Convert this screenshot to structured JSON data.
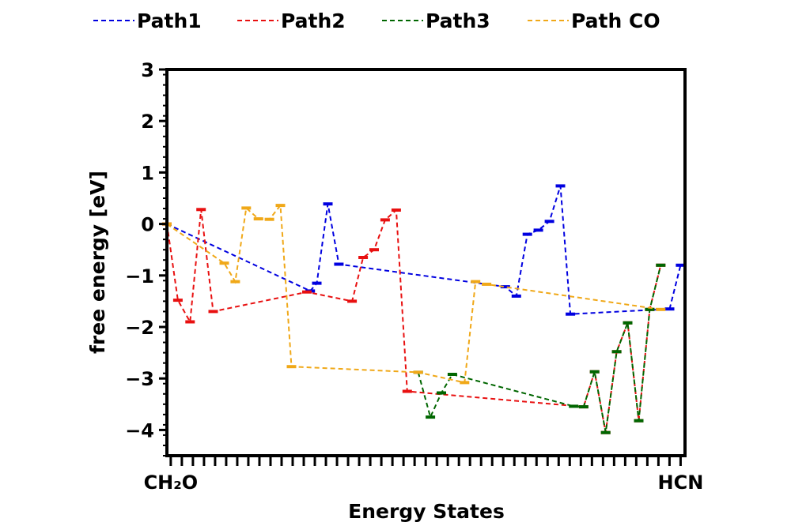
{
  "chart_data": {
    "type": "line",
    "title": "",
    "xlabel": "Energy States",
    "ylabel": "free energy [eV]",
    "ylim": [
      -4.5,
      3
    ],
    "xlim": [
      0,
      47
    ],
    "y_ticks": [
      3,
      2,
      1,
      0,
      -1,
      -2,
      -3,
      -4
    ],
    "x_tick_labels": [
      {
        "x": 0.35,
        "label": "CH₂O"
      },
      {
        "x": 46.6,
        "label": "HCN"
      }
    ],
    "minor_x_ticks": 46,
    "grid": false,
    "legend": {
      "position": "top",
      "entries": [
        "Path1",
        "Path2",
        "Path3",
        "Path CO"
      ]
    },
    "series": [
      {
        "name": "Path1",
        "color": "#0000e0",
        "points": [
          [
            0,
            0
          ],
          [
            13,
            -1.3
          ],
          [
            13.6,
            -1.15
          ],
          [
            14.6,
            0.39
          ],
          [
            15.6,
            -0.78
          ],
          [
            30.7,
            -1.22
          ],
          [
            31.7,
            -1.4
          ],
          [
            32.7,
            -0.2
          ],
          [
            33.7,
            -0.12
          ],
          [
            34.7,
            0.05
          ],
          [
            35.7,
            0.74
          ],
          [
            36.6,
            -1.75
          ],
          [
            45.6,
            -1.65
          ],
          [
            46.6,
            -0.8
          ]
        ]
      },
      {
        "name": "Path2",
        "color": "#e81010",
        "points": [
          [
            0,
            0
          ],
          [
            1,
            -1.48
          ],
          [
            2.1,
            -1.9
          ],
          [
            3.1,
            0.28
          ],
          [
            4.2,
            -1.7
          ],
          [
            12.7,
            -1.32
          ],
          [
            16.8,
            -1.5
          ],
          [
            17.8,
            -0.65
          ],
          [
            18.8,
            -0.5
          ],
          [
            19.8,
            0.08
          ],
          [
            20.8,
            0.27
          ],
          [
            21.8,
            -3.25
          ],
          [
            37.8,
            -3.55
          ],
          [
            38.8,
            -2.87
          ],
          [
            39.8,
            -4.05
          ],
          [
            40.8,
            -2.48
          ],
          [
            41.8,
            -1.92
          ],
          [
            42.8,
            -3.82
          ],
          [
            43.8,
            -1.66
          ],
          [
            44.8,
            -0.8
          ]
        ]
      },
      {
        "name": "Path3",
        "color": "#006600",
        "points": [
          [
            22.8,
            -2.88
          ],
          [
            23.9,
            -3.75
          ],
          [
            24.9,
            -3.28
          ],
          [
            25.9,
            -2.92
          ],
          [
            36.9,
            -3.54
          ],
          [
            37.8,
            -3.55
          ],
          [
            38.8,
            -2.87
          ],
          [
            39.8,
            -4.05
          ],
          [
            40.8,
            -2.48
          ],
          [
            41.8,
            -1.92
          ],
          [
            42.8,
            -3.82
          ],
          [
            43.8,
            -1.66
          ],
          [
            44.8,
            -0.8
          ]
        ]
      },
      {
        "name": "Path CO",
        "color": "#f0a818",
        "points": [
          [
            0,
            0
          ],
          [
            5.2,
            -0.76
          ],
          [
            6.2,
            -1.12
          ],
          [
            7.2,
            0.31
          ],
          [
            8.3,
            0.1
          ],
          [
            9.3,
            0.09
          ],
          [
            10.3,
            0.36
          ],
          [
            11.3,
            -2.77
          ],
          [
            22.8,
            -2.88
          ],
          [
            27,
            -3.08
          ],
          [
            28,
            -1.12
          ],
          [
            29,
            -1.17
          ],
          [
            44.8,
            -1.66
          ]
        ]
      }
    ]
  }
}
